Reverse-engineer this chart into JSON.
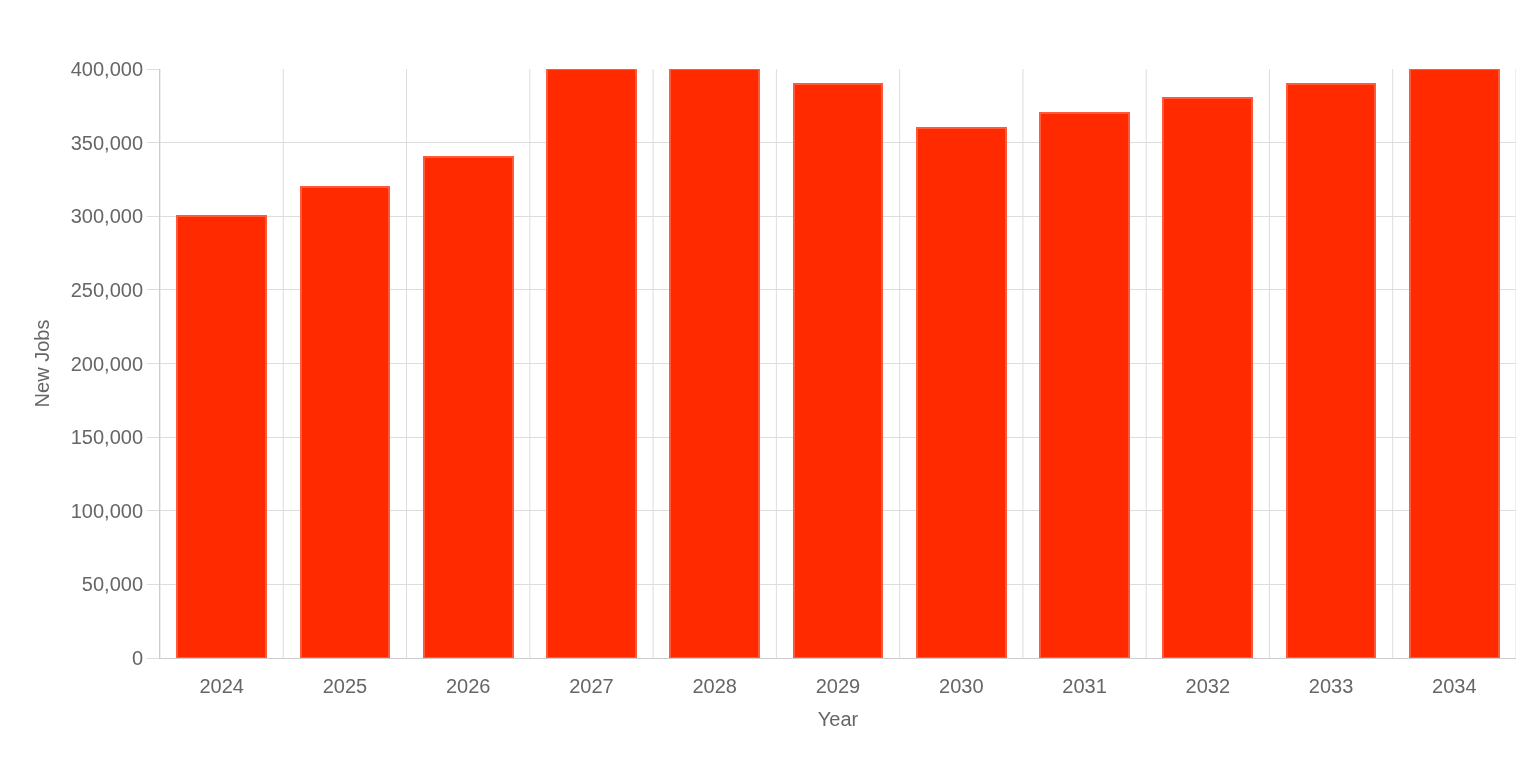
{
  "chart_data": {
    "type": "bar",
    "xlabel": "Year",
    "ylabel": "New Jobs",
    "categories": [
      "2024",
      "2025",
      "2026",
      "2027",
      "2028",
      "2029",
      "2030",
      "2031",
      "2032",
      "2033",
      "2034"
    ],
    "values": [
      300000,
      320000,
      340000,
      400000,
      400000,
      390000,
      360000,
      370000,
      380000,
      390000,
      400000
    ],
    "color": "#ff2a00",
    "ylim": [
      0,
      400000
    ],
    "yticks": [
      {
        "value": 0,
        "label": "0"
      },
      {
        "value": 50000,
        "label": "50,000"
      },
      {
        "value": 100000,
        "label": "100,000"
      },
      {
        "value": 150000,
        "label": "150,000"
      },
      {
        "value": 200000,
        "label": "200,000"
      },
      {
        "value": 250000,
        "label": "250,000"
      },
      {
        "value": 300000,
        "label": "300,000"
      },
      {
        "value": 350000,
        "label": "350,000"
      },
      {
        "value": 400000,
        "label": "400,000"
      }
    ],
    "grid": true
  }
}
